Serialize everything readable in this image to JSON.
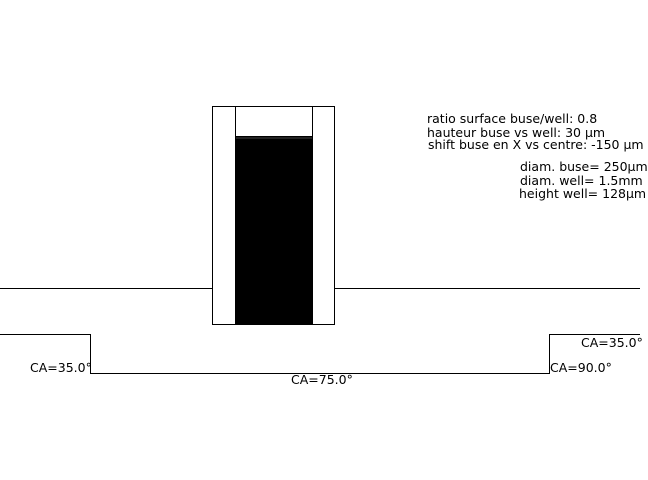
{
  "params": {
    "ratio": "ratio surface buse/well: 0.8",
    "hauteur": "hauteur buse vs well: 30 µm",
    "shift": "shift buse en X vs centre: -150 µm",
    "diam_buse": "diam. buse= 250µm",
    "diam_well": "diam. well= 1.5mm",
    "height_well": "height well= 128µm"
  },
  "contact_angles": {
    "left_step": "CA=35.0°",
    "well_bottom": "CA=75.0°",
    "right_step_bottom": "CA=90.0°",
    "right_step_top": "CA=35.0°"
  },
  "colors": {
    "line": "#000000",
    "fill": "#000000",
    "background": "#ffffff"
  }
}
